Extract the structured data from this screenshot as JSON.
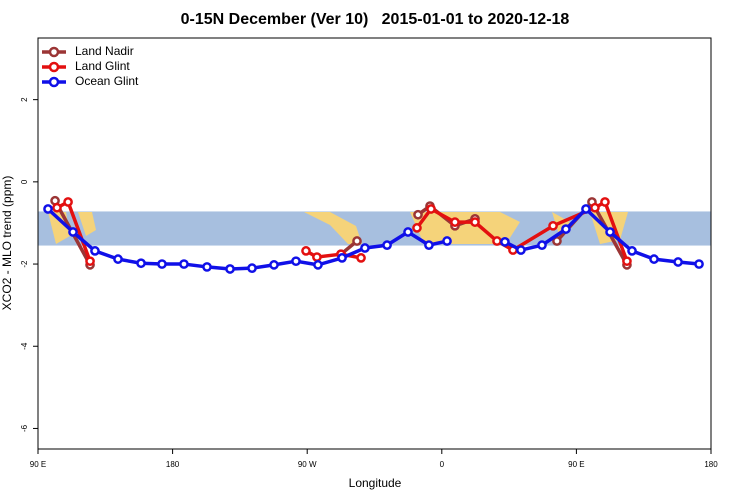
{
  "chart_data": {
    "type": "line",
    "title": "0-15N December (Ver 10)   2015-01-01 to 2020-12-18",
    "x_label": "Longitude",
    "y_label": "XCO2 - MLO trend (ppm)",
    "xlim": [
      90,
      540
    ],
    "xticks": [
      {
        "value": 90,
        "label": "90 E"
      },
      {
        "value": 180,
        "label": "180"
      },
      {
        "value": 270,
        "label": "90 W"
      },
      {
        "value": 360,
        "label": "0"
      },
      {
        "value": 450,
        "label": "90 E"
      },
      {
        "value": 540,
        "label": "180"
      }
    ],
    "ylim": [
      -6.5,
      3.5
    ],
    "yticks": [
      -6,
      -4,
      -2,
      0,
      2
    ],
    "background_band": {
      "ylim": [
        -1.55,
        -0.72
      ],
      "color": "#a7bfdf"
    },
    "legend": "top-left",
    "series": [
      {
        "name": "Land Nadir",
        "color": "#9b3535",
        "x": [
          101.4,
          124.8,
          null,
          292.6,
          303.3,
          null,
          344.1,
          352.1,
          368.8,
          382.2,
          null,
          437.0,
          460.4,
          483.8
        ],
        "values": [
          -0.46,
          -2.02,
          null,
          -1.76,
          -1.44,
          null,
          -0.8,
          -0.59,
          -1.07,
          -0.9,
          null,
          -1.44,
          -0.49,
          -2.02
        ]
      },
      {
        "name": "Land Glint",
        "color": "#e31010",
        "x": [
          102.7,
          110.1,
          124.8,
          null,
          269.2,
          276.5,
          292.6,
          306.0,
          null,
          343.4,
          352.8,
          368.8,
          382.2,
          396.9,
          407.6,
          434.4,
          462.4,
          469.1,
          483.8
        ],
        "values": [
          -0.63,
          -0.49,
          -1.93,
          null,
          -1.68,
          -1.83,
          -1.76,
          -1.85,
          null,
          -1.12,
          -0.66,
          -0.98,
          -0.98,
          -1.44,
          -1.66,
          -1.07,
          -0.63,
          -0.49,
          -1.93
        ]
      },
      {
        "name": "Ocean Glint",
        "color": "#1010e8",
        "x": [
          96.7,
          113.4,
          128.1,
          143.5,
          158.9,
          172.9,
          187.6,
          203.0,
          218.4,
          233.1,
          247.8,
          262.5,
          277.2,
          293.3,
          308.6,
          323.4,
          337.4,
          351.4,
          363.5,
          null,
          402.2,
          412.9,
          427.0,
          443.0,
          456.4,
          472.5,
          487.2,
          501.9,
          518.0,
          532.0
        ],
        "values": [
          -0.66,
          -1.22,
          -1.68,
          -1.88,
          -1.98,
          -2.0,
          -2.0,
          -2.07,
          -2.12,
          -2.1,
          -2.02,
          -1.93,
          -2.02,
          -1.85,
          -1.61,
          -1.54,
          -1.22,
          -1.54,
          -1.44,
          null,
          -1.46,
          -1.66,
          -1.54,
          -1.15,
          -0.66,
          -1.22,
          -1.68,
          -1.88,
          -1.95,
          -2.0
        ]
      }
    ]
  }
}
